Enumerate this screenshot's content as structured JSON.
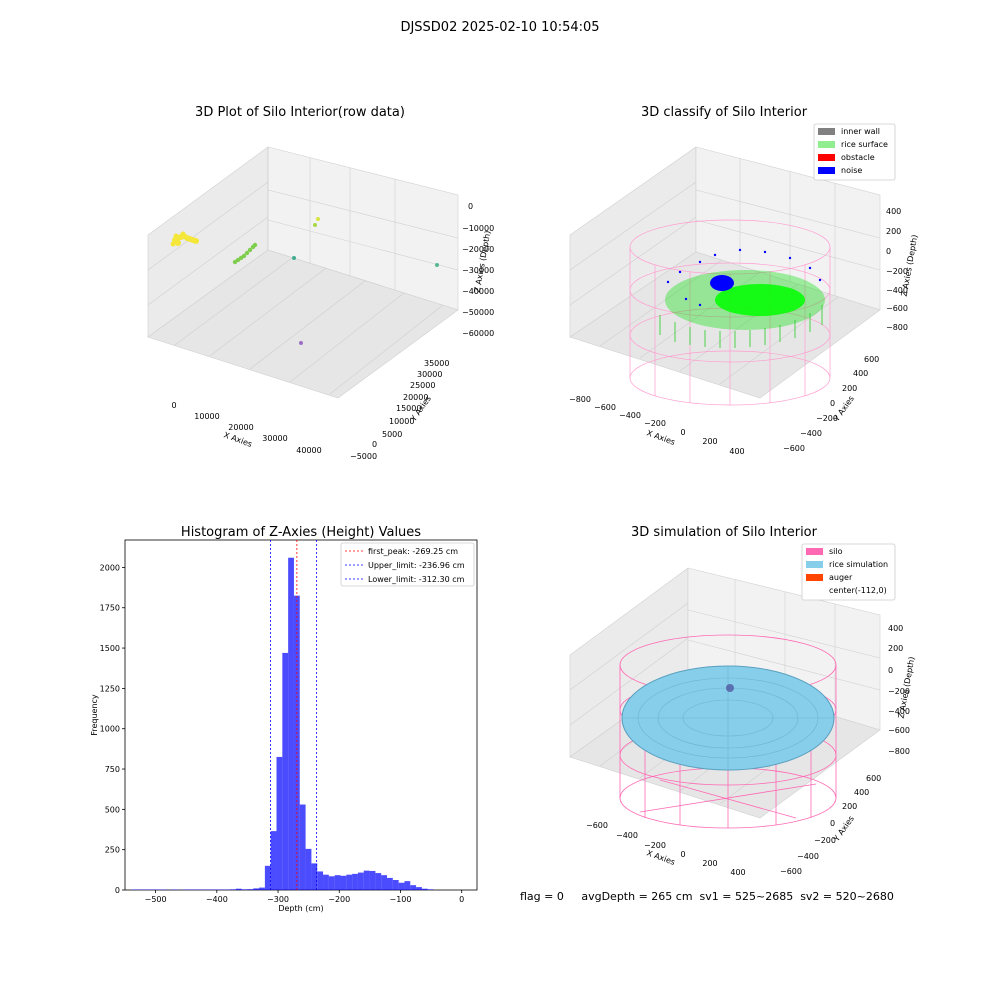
{
  "figure": {
    "suptitle": "DJSSD02 2025-02-10 10:54:05",
    "footer": "flag = 0     avgDepth = 265 cm  sv1 = 525~2685  sv2 = 520~2680"
  },
  "panels": {
    "raw": {
      "title": "3D Plot of Silo Interior(row data)",
      "xlabel": "X Axies",
      "ylabel": "Y Axies",
      "zlabel": "Z Axies (Depth)",
      "xticks": [
        "0",
        "10000",
        "20000",
        "30000",
        "40000"
      ],
      "yticks": [
        "−5000",
        "0",
        "5000",
        "10000",
        "15000",
        "20000",
        "25000",
        "30000",
        "35000"
      ],
      "zticks": [
        "0",
        "−10000",
        "−20000",
        "−30000",
        "−40000",
        "−50000",
        "−60000"
      ],
      "colors": {
        "yellow": "#f5e63a",
        "green": "#7fce4e",
        "teal": "#3fae8f",
        "purple": "#9b6fc4"
      }
    },
    "classify": {
      "title": "3D classify of Silo Interior",
      "xlabel": "X Axies",
      "ylabel": "Y Axies",
      "zlabel": "Z Axies (Depth)",
      "xticks": [
        "−800",
        "−600",
        "−400",
        "−200",
        "0",
        "200",
        "400"
      ],
      "yticks": [
        "−600",
        "−400",
        "−200",
        "0",
        "200",
        "400",
        "600"
      ],
      "zticks": [
        "400",
        "200",
        "0",
        "−200",
        "−400",
        "−600",
        "−800"
      ],
      "legend": [
        {
          "label": "inner wall",
          "color": "#808080"
        },
        {
          "label": "rice surface",
          "color": "#90ee90"
        },
        {
          "label": "obstacle",
          "color": "#ff0000"
        },
        {
          "label": "noise",
          "color": "#0000ff"
        }
      ]
    },
    "simulation": {
      "title": "3D simulation of Silo Interior",
      "xlabel": "X Axies",
      "ylabel": "Y Axies",
      "zlabel": "Z Axies (Depth)",
      "xticks": [
        "−600",
        "−400",
        "−200",
        "0",
        "200",
        "400"
      ],
      "yticks": [
        "−600",
        "−400",
        "−200",
        "0",
        "200",
        "400",
        "600"
      ],
      "zticks": [
        "400",
        "200",
        "0",
        "−200",
        "−400",
        "−600",
        "−800"
      ],
      "legend": [
        {
          "label": "silo",
          "color": "#ff69b4"
        },
        {
          "label": "rice simulation",
          "color": "#87ceeb"
        },
        {
          "label": "auger",
          "color": "#ff4500"
        },
        {
          "label": "center(-112,0)",
          "color": "#ffffff"
        }
      ]
    }
  },
  "chart_data": [
    {
      "type": "bar",
      "title": "Histogram of Z-Axies (Height) Values",
      "xlabel": "Depth (cm)",
      "ylabel": "Frequency",
      "xlim": [
        -550,
        25
      ],
      "ylim": [
        0,
        2170
      ],
      "bar_color": "#0000ff",
      "xticks": [
        -500,
        -400,
        -300,
        -200,
        -100,
        0
      ],
      "xtick_labels": [
        "−500",
        "−400",
        "−300",
        "−200",
        "−100",
        "0"
      ],
      "yticks": [
        0,
        250,
        500,
        750,
        1000,
        1250,
        1500,
        1750,
        2000
      ],
      "ytick_labels": [
        "0",
        "250",
        "500",
        "750",
        "1000",
        "1250",
        "1500",
        "1750",
        "2000"
      ],
      "bin_width": 9.5,
      "bins": [
        {
          "x0": -540,
          "count": 3
        },
        {
          "x0": -530.5,
          "count": 3
        },
        {
          "x0": -521,
          "count": 3
        },
        {
          "x0": -511.5,
          "count": 3
        },
        {
          "x0": -502,
          "count": 3
        },
        {
          "x0": -492.5,
          "count": 3
        },
        {
          "x0": -483,
          "count": 1
        },
        {
          "x0": -473.5,
          "count": 3
        },
        {
          "x0": -464,
          "count": 1
        },
        {
          "x0": -454.5,
          "count": 3
        },
        {
          "x0": -445,
          "count": 3
        },
        {
          "x0": -435.5,
          "count": 3
        },
        {
          "x0": -426,
          "count": 3
        },
        {
          "x0": -416.5,
          "count": 3
        },
        {
          "x0": -407,
          "count": 3
        },
        {
          "x0": -397.5,
          "count": 3
        },
        {
          "x0": -388,
          "count": 3
        },
        {
          "x0": -378.5,
          "count": 4
        },
        {
          "x0": -369,
          "count": 8
        },
        {
          "x0": -359.5,
          "count": 4
        },
        {
          "x0": -350,
          "count": 5
        },
        {
          "x0": -340.5,
          "count": 10
        },
        {
          "x0": -331,
          "count": 15
        },
        {
          "x0": -321.5,
          "count": 150
        },
        {
          "x0": -312,
          "count": 365
        },
        {
          "x0": -302.5,
          "count": 825
        },
        {
          "x0": -293,
          "count": 1470
        },
        {
          "x0": -283.5,
          "count": 2060
        },
        {
          "x0": -274,
          "count": 1825
        },
        {
          "x0": -264.5,
          "count": 530
        },
        {
          "x0": -255,
          "count": 255
        },
        {
          "x0": -245.5,
          "count": 165
        },
        {
          "x0": -236,
          "count": 115
        },
        {
          "x0": -226.5,
          "count": 95
        },
        {
          "x0": -217,
          "count": 85
        },
        {
          "x0": -207.5,
          "count": 92
        },
        {
          "x0": -198,
          "count": 88
        },
        {
          "x0": -188.5,
          "count": 95
        },
        {
          "x0": -179,
          "count": 100
        },
        {
          "x0": -169.5,
          "count": 108
        },
        {
          "x0": -160,
          "count": 120
        },
        {
          "x0": -150.5,
          "count": 118
        },
        {
          "x0": -141,
          "count": 105
        },
        {
          "x0": -131.5,
          "count": 92
        },
        {
          "x0": -122,
          "count": 75
        },
        {
          "x0": -112.5,
          "count": 62
        },
        {
          "x0": -103,
          "count": 45
        },
        {
          "x0": -93.5,
          "count": 55
        },
        {
          "x0": -84,
          "count": 30
        },
        {
          "x0": -74.5,
          "count": 18
        },
        {
          "x0": -65,
          "count": 8
        },
        {
          "x0": -55.5,
          "count": 4
        }
      ],
      "lines": [
        {
          "label": "first_peak: -269.25 cm",
          "x": -269.25,
          "color": "#ff0000"
        },
        {
          "label": "Upper_limit: -236.96 cm",
          "x": -236.96,
          "color": "#0000ff"
        },
        {
          "label": "Lower_limit: -312.30 cm",
          "x": -312.3,
          "color": "#0000ff"
        }
      ]
    }
  ]
}
